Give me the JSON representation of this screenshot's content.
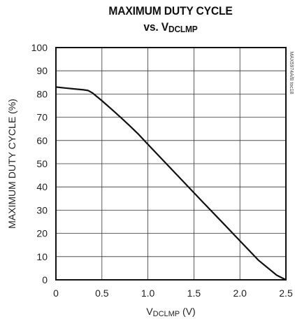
{
  "chart_data": {
    "type": "line",
    "title_line1": "MAXIMUM DUTY CYCLE",
    "title_line2_prefix": "vs. V",
    "title_line2_sub": "DCLMP",
    "xlabel_main": "V",
    "xlabel_sub": "DCLMP",
    "xlabel_unit": " (V)",
    "ylabel": "MAXIMUM DUTY CYCLE (%)",
    "side_code": "MAX5974A/B toc18",
    "xlim": [
      0,
      2.5
    ],
    "ylim": [
      0,
      100
    ],
    "x_ticks": [
      "0",
      "0.5",
      "1.0",
      "1.5",
      "2.0",
      "2.5"
    ],
    "x_tick_values": [
      0,
      0.5,
      1.0,
      1.5,
      2.0,
      2.5
    ],
    "y_ticks": [
      "0",
      "10",
      "20",
      "30",
      "40",
      "50",
      "60",
      "70",
      "80",
      "90",
      "100"
    ],
    "y_tick_values": [
      0,
      10,
      20,
      30,
      40,
      50,
      60,
      70,
      80,
      90,
      100
    ],
    "grid": true,
    "series": [
      {
        "x": [
          0,
          0.1,
          0.2,
          0.3,
          0.35,
          0.4,
          0.5,
          0.6,
          0.7,
          0.8,
          0.9,
          1.0,
          1.2,
          1.4,
          1.6,
          1.8,
          2.0,
          2.2,
          2.4,
          2.5
        ],
        "y": [
          83,
          82.6,
          82.2,
          81.8,
          81.5,
          80.4,
          77.1,
          73.6,
          70.1,
          66.4,
          62.6,
          58.3,
          50.0,
          41.7,
          33.3,
          25.1,
          16.8,
          8.5,
          2.0,
          0
        ]
      }
    ]
  }
}
